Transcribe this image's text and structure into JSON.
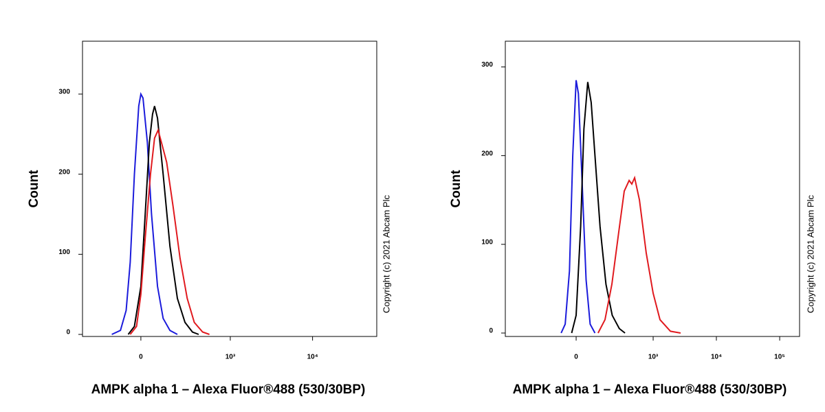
{
  "chart_data": [
    {
      "type": "line",
      "xscale": "biexponential",
      "xlabel": "AMPK alpha 1 – Alexa Fluor®488 (530/30BP)",
      "ylabel": "Count",
      "annotation": "Copyright (c) 2021 Abcam Plc",
      "xlim": [
        -407,
        60000
      ],
      "ylim": [
        0,
        366
      ],
      "xticks": [
        0,
        {
          "value": 1000,
          "label": "10³"
        },
        {
          "value": 10000,
          "label": "10⁴"
        }
      ],
      "yticks": [
        0,
        100,
        200,
        300
      ],
      "series": [
        {
          "color": "#1a1adb",
          "x": [
            -150,
            -100,
            -70,
            -50,
            -30,
            -10,
            0,
            10,
            30,
            50,
            80,
            110,
            150,
            200
          ],
          "values": [
            0,
            5,
            30,
            90,
            200,
            285,
            300,
            295,
            240,
            150,
            60,
            20,
            5,
            0
          ]
        },
        {
          "color": "#000000",
          "x": [
            -60,
            -30,
            0,
            20,
            40,
            55,
            65,
            80,
            110,
            150,
            200,
            260,
            330,
            400
          ],
          "values": [
            0,
            10,
            60,
            150,
            240,
            275,
            285,
            270,
            200,
            110,
            45,
            15,
            3,
            0
          ]
        },
        {
          "color": "#e0191e",
          "x": [
            -50,
            -20,
            0,
            20,
            45,
            65,
            83,
            100,
            130,
            170,
            220,
            280,
            350,
            450,
            550
          ],
          "values": [
            0,
            10,
            50,
            120,
            200,
            245,
            255,
            240,
            215,
            160,
            95,
            45,
            15,
            3,
            0
          ]
        }
      ]
    },
    {
      "type": "line",
      "xscale": "biexponential",
      "xlabel": "AMPK alpha 1 – Alexa Fluor®488 (530/30BP)",
      "ylabel": "Count",
      "annotation": "Copyright (c) 2021 Abcam Plc",
      "xlim": [
        -797,
        206000
      ],
      "ylim": [
        0,
        329
      ],
      "xticks": [
        0,
        {
          "value": 1000,
          "label": "10³"
        },
        {
          "value": 10000,
          "label": "10⁴"
        },
        {
          "value": 100000,
          "label": "10⁵"
        }
      ],
      "yticks": [
        0,
        100,
        200,
        300
      ],
      "series": [
        {
          "color": "#1a1adb",
          "x": [
            -70,
            -50,
            -30,
            -15,
            0,
            10,
            25,
            45,
            65,
            90
          ],
          "values": [
            0,
            10,
            70,
            200,
            285,
            270,
            180,
            60,
            10,
            0
          ]
        },
        {
          "color": "#000000",
          "x": [
            -20,
            0,
            20,
            35,
            53,
            70,
            90,
            120,
            160,
            210,
            280,
            350
          ],
          "values": [
            0,
            20,
            120,
            230,
            283,
            260,
            200,
            120,
            55,
            20,
            5,
            0
          ]
        },
        {
          "color": "#e0191e",
          "x": [
            108,
            153,
            207,
            276,
            340,
            410,
            454,
            504,
            603,
            777,
            1000,
            1283,
            1880,
            2725
          ],
          "values": [
            0,
            15,
            55,
            115,
            160,
            172,
            168,
            175,
            150,
            90,
            45,
            15,
            2,
            0
          ]
        }
      ]
    }
  ]
}
